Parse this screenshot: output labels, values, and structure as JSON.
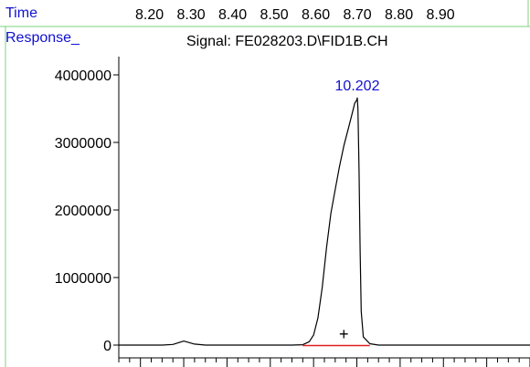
{
  "header": {
    "time_label": "Time",
    "time_ticks": [
      "8.20",
      "8.30",
      "8.40",
      "8.50",
      "8.60",
      "8.70",
      "8.80",
      "8.90"
    ],
    "response_label": "Response_",
    "signal_label": "Signal: FE028203.D\\FID1B.CH"
  },
  "colors": {
    "blue_text": "#1010d0",
    "green_rule": "#7fd07f",
    "trace": "#000000",
    "baseline": "#e02020"
  },
  "chart_data": {
    "type": "line",
    "title": "Signal: FE028203.D\\FID1B.CH",
    "xlabel": "",
    "ylabel": "Response_",
    "ylim": [
      0,
      4000000
    ],
    "y_ticks": [
      0,
      1000000,
      2000000,
      3000000,
      4000000
    ],
    "y_tick_labels": [
      "0",
      "1000000",
      "2000000",
      "3000000",
      "4000000"
    ],
    "xlim": [
      9.1,
      11.0
    ],
    "x_ticks": [
      9.2,
      9.4,
      9.6,
      9.8,
      10.0,
      10.2,
      10.4,
      10.6,
      10.8,
      11.0
    ],
    "x_minor_step": 0.05,
    "x_tick_labels": [],
    "grid": false,
    "series": [
      {
        "x": [
          9.1,
          9.3,
          9.35,
          9.4,
          9.45,
          9.5,
          9.6,
          9.7,
          9.8,
          9.9,
          9.95,
          9.98,
          10.0,
          10.02,
          10.04,
          10.06,
          10.08,
          10.1,
          10.12,
          10.14,
          10.16,
          10.18,
          10.19,
          10.2,
          10.202,
          10.205,
          10.21,
          10.215,
          10.22,
          10.23,
          10.26,
          10.3,
          10.4,
          10.6,
          10.8,
          11.0
        ],
        "values": [
          0,
          0,
          10000,
          60000,
          15000,
          0,
          0,
          0,
          0,
          0,
          5000,
          50000,
          150000,
          400000,
          850000,
          1450000,
          1950000,
          2300000,
          2650000,
          2950000,
          3200000,
          3450000,
          3580000,
          3630000,
          3660000,
          3500000,
          2600000,
          1400000,
          500000,
          120000,
          20000,
          0,
          0,
          0,
          0,
          0
        ]
      }
    ],
    "peak_labels": [
      {
        "x": 10.202,
        "y": 3660000,
        "text": "10.202"
      }
    ],
    "baseline_segment": {
      "x": [
        9.95,
        10.26
      ],
      "y": 0
    },
    "marker": {
      "x": 10.14,
      "y": 160000,
      "text": "+"
    }
  }
}
